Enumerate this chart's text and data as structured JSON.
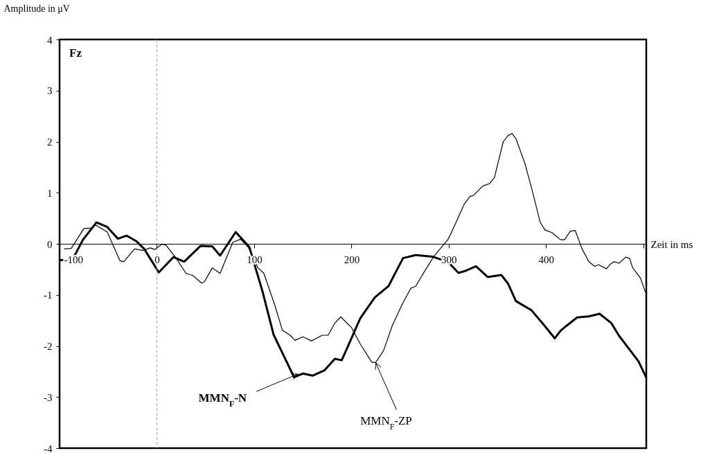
{
  "chart_data": {
    "type": "line",
    "xlabel": "Zeit in ms",
    "ylabel": "Amplitude in μV",
    "xlim": [
      -100,
      503
    ],
    "ylim": [
      -4,
      4
    ],
    "xticks": [
      -100,
      0,
      100,
      200,
      300,
      400,
      {
        "value": 500,
        "label": null
      }
    ],
    "yticks": [
      -4,
      -3,
      -2,
      -1,
      0,
      1,
      2,
      3,
      4
    ],
    "grid": false,
    "marker": "none",
    "line_style": "solid",
    "ref_lines": [
      {
        "axis": "x",
        "value": 0,
        "label": null,
        "color": "#a6a6a6",
        "line_style": "dashed"
      }
    ],
    "annotations": [
      "Fz",
      {
        "text": "MMN$_{F}$-N",
        "x": 145,
        "y": -2.55
      },
      {
        "text": "MMN$_{F}$-ZP",
        "x": 225,
        "y": -2.33
      }
    ],
    "series": [
      {
        "color": "#000000",
        "x": [
          -100,
          -87,
          -76,
          -62,
          -51,
          -40,
          -31,
          -21,
          -13,
          2,
          17,
          28,
          45,
          57,
          65,
          81,
          95,
          109,
          120,
          141,
          150,
          160,
          172,
          183,
          190,
          209,
          224,
          238,
          253,
          266,
          283,
          299,
          310,
          317,
          328,
          340,
          354,
          361,
          369,
          385,
          397,
          409,
          415,
          420,
          432,
          444,
          455,
          467,
          475,
          485,
          495,
          503
        ],
        "values": [
          -0.32,
          -0.32,
          0.08,
          0.42,
          0.33,
          0.1,
          0.16,
          0.05,
          -0.1,
          -0.56,
          -0.26,
          -0.35,
          -0.04,
          -0.05,
          -0.23,
          0.23,
          -0.06,
          -0.96,
          -1.78,
          -2.61,
          -2.54,
          -2.58,
          -2.48,
          -2.25,
          -2.28,
          -1.46,
          -1.05,
          -0.83,
          -0.28,
          -0.22,
          -0.25,
          -0.35,
          -0.57,
          -0.53,
          -0.44,
          -0.65,
          -0.61,
          -0.78,
          -1.12,
          -1.3,
          -1.57,
          -1.85,
          -1.7,
          -1.62,
          -1.44,
          -1.42,
          -1.37,
          -1.55,
          -1.8,
          -2.05,
          -2.3,
          -2.62
        ]
      },
      {
        "color": "#000000",
        "x": [
          -95,
          -88,
          -75,
          -67,
          -63,
          -51,
          -38,
          -34,
          -23,
          -14,
          -7,
          -2,
          5,
          9,
          19,
          30,
          37,
          46,
          49,
          57,
          65,
          78,
          86,
          94,
          104,
          110,
          121,
          129,
          137,
          142,
          150,
          159,
          170,
          176,
          183,
          189,
          200,
          209,
          221,
          225,
          233,
          242,
          252,
          261,
          266,
          276,
          285,
          299,
          302,
          316,
          322,
          325,
          335,
          342,
          347,
          356,
          361,
          365,
          369,
          378,
          386,
          394,
          399,
          406,
          415,
          419,
          425,
          430,
          437,
          444,
          450,
          454,
          462,
          466,
          470,
          475,
          482,
          486,
          489,
          497,
          502
        ],
        "values": [
          -0.1,
          -0.09,
          0.3,
          0.31,
          0.37,
          0.23,
          -0.33,
          -0.35,
          -0.1,
          -0.13,
          -0.08,
          -0.11,
          -0.01,
          -0.02,
          -0.26,
          -0.58,
          -0.62,
          -0.77,
          -0.74,
          -0.47,
          -0.58,
          0.03,
          0.09,
          -0.07,
          -0.47,
          -0.58,
          -1.19,
          -1.69,
          -1.79,
          -1.89,
          -1.82,
          -1.9,
          -1.79,
          -1.79,
          -1.55,
          -1.43,
          -1.64,
          -1.96,
          -2.32,
          -2.32,
          -2.09,
          -1.6,
          -1.19,
          -0.87,
          -0.83,
          -0.51,
          -0.24,
          0.08,
          0.19,
          0.78,
          0.93,
          0.94,
          1.13,
          1.18,
          1.3,
          2.0,
          2.12,
          2.16,
          2.06,
          1.59,
          1.03,
          0.42,
          0.27,
          0.22,
          0.08,
          0.08,
          0.25,
          0.26,
          -0.1,
          -0.35,
          -0.44,
          -0.41,
          -0.49,
          -0.4,
          -0.35,
          -0.38,
          -0.26,
          -0.29,
          -0.47,
          -0.67,
          -0.94
        ]
      }
    ]
  }
}
